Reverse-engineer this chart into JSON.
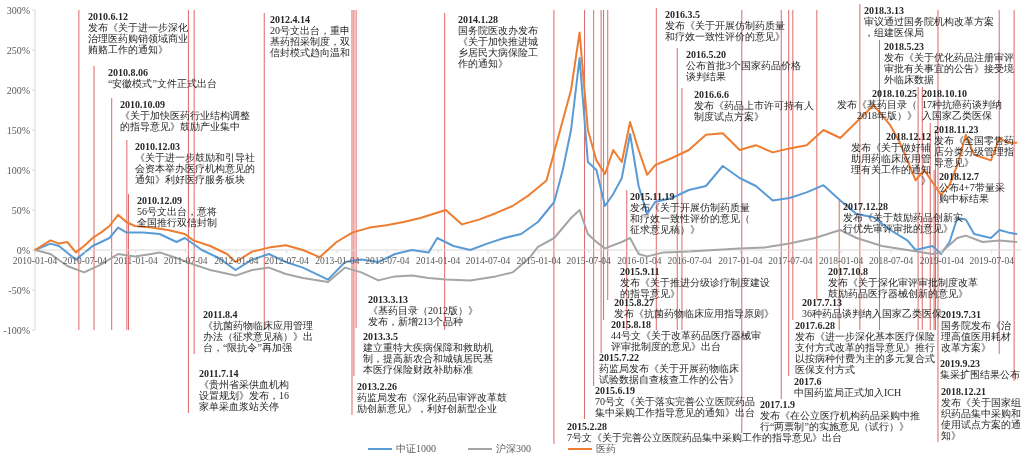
{
  "chart_data": {
    "type": "line",
    "legend": "bottom",
    "line_style": "solid",
    "marker": "none",
    "xlim": [
      "2010-01-04",
      "2019-10-18"
    ],
    "xticks": [
      "2010-01-04",
      "2010-07-04",
      "2011-01-04",
      "2011-07-04",
      "2012-01-04",
      "2012-07-04",
      "2013-01-04",
      "2013-07-04",
      "2014-01-04",
      "2014-07-04",
      "2015-01-04",
      "2015-07-04",
      "2016-01-04",
      "2016-07-04",
      "2017-01-04",
      "2017-07-04",
      "2018-01-04",
      "2018-07-04",
      "2019-01-04",
      "2019-07-04"
    ],
    "ylim": [
      -100,
      300
    ],
    "yticks": [
      {
        "value": -100,
        "label": "-100%"
      },
      {
        "value": -50,
        "label": "-50%"
      },
      {
        "value": 0,
        "label": "0%"
      },
      {
        "value": 50,
        "label": "50%"
      },
      {
        "value": 100,
        "label": "100%"
      },
      {
        "value": 150,
        "label": "150%"
      },
      {
        "value": 200,
        "label": "200%"
      },
      {
        "value": 250,
        "label": "250%"
      },
      {
        "value": 300,
        "label": "300%"
      }
    ],
    "series": [
      {
        "name": "中证1000",
        "color": "#5b9bd5",
        "x": [
          "2010-01-04",
          "2010-03",
          "2010-04",
          "2010-06",
          "2010-08",
          "2010-10",
          "2010-11",
          "2010-12",
          "2011-02",
          "2011-04",
          "2011-06",
          "2011-07",
          "2011-09",
          "2011-11",
          "2012-01",
          "2012-03",
          "2012-05",
          "2012-07",
          "2012-09",
          "2012-12",
          "2013-02",
          "2013-04",
          "2013-06",
          "2013-08",
          "2013-10",
          "2013-12",
          "2014-01",
          "2014-03",
          "2014-05",
          "2014-07",
          "2014-09",
          "2014-11",
          "2015-01",
          "2015-03",
          "2015-04",
          "2015-05",
          "2015-06",
          "2015-07",
          "2015-08",
          "2015-09",
          "2015-10",
          "2015-11",
          "2015-12",
          "2016-01",
          "2016-02",
          "2016-03",
          "2016-05",
          "2016-07",
          "2016-09",
          "2016-11",
          "2017-01",
          "2017-03",
          "2017-05",
          "2017-07",
          "2017-09",
          "2017-11",
          "2018-01",
          "2018-03",
          "2018-05",
          "2018-07",
          "2018-09",
          "2018-10",
          "2018-12",
          "2019-01",
          "2019-02",
          "2019-03",
          "2019-04",
          "2019-05",
          "2019-07",
          "2019-08",
          "2019-09",
          "2019-10"
        ],
        "values": [
          0,
          8,
          5,
          -12,
          5,
          15,
          28,
          22,
          22,
          20,
          10,
          15,
          0,
          -10,
          -25,
          -12,
          -5,
          -15,
          -22,
          -37,
          -15,
          -12,
          -15,
          -5,
          0,
          -3,
          15,
          5,
          0,
          8,
          15,
          20,
          35,
          60,
          100,
          150,
          240,
          110,
          100,
          55,
          70,
          90,
          145,
          80,
          45,
          60,
          65,
          75,
          80,
          105,
          90,
          80,
          62,
          65,
          72,
          81,
          62,
          45,
          41,
          25,
          12,
          0,
          5,
          -5,
          10,
          40,
          38,
          20,
          15,
          25,
          22,
          20
        ]
      },
      {
        "name": "沪深300",
        "color": "#a5a5a5",
        "x": [
          "2010-01-04",
          "2010-03",
          "2010-05",
          "2010-07",
          "2010-09",
          "2010-11",
          "2011-01",
          "2011-03",
          "2011-04",
          "2011-06",
          "2011-08",
          "2011-10",
          "2012-01",
          "2012-03",
          "2012-05",
          "2012-07",
          "2012-09",
          "2012-12",
          "2013-02",
          "2013-04",
          "2013-06",
          "2013-08",
          "2013-10",
          "2013-12",
          "2014-02",
          "2014-05",
          "2014-08",
          "2014-10",
          "2014-12",
          "2015-01",
          "2015-03",
          "2015-05",
          "2015-06",
          "2015-07",
          "2015-08",
          "2015-09",
          "2015-11",
          "2015-12",
          "2016-01",
          "2016-02",
          "2016-04",
          "2016-07",
          "2016-10",
          "2017-01",
          "2017-04",
          "2017-07",
          "2017-10",
          "2018-01",
          "2018-03",
          "2018-06",
          "2018-09",
          "2018-12",
          "2019-01",
          "2019-03",
          "2019-04",
          "2019-06",
          "2019-08",
          "2019-10"
        ],
        "values": [
          0,
          -5,
          -20,
          -28,
          -18,
          -5,
          -8,
          -5,
          -3,
          -10,
          -18,
          -25,
          -32,
          -25,
          -22,
          -30,
          -35,
          -40,
          -22,
          -28,
          -38,
          -33,
          -32,
          -35,
          -37,
          -38,
          -33,
          -28,
          -10,
          4,
          15,
          40,
          50,
          20,
          10,
          2,
          10,
          15,
          -5,
          -8,
          -3,
          -2,
          0,
          2,
          3,
          8,
          15,
          25,
          15,
          5,
          0,
          -5,
          -3,
          15,
          18,
          10,
          12,
          10
        ]
      },
      {
        "name": "医药",
        "color": "#ed7d31",
        "x": [
          "2010-01-04",
          "2010-03",
          "2010-04",
          "2010-05",
          "2010-06",
          "2010-07",
          "2010-08",
          "2010-09",
          "2010-10",
          "2010-11",
          "2010-12",
          "2011-01",
          "2011-03",
          "2011-05",
          "2011-07",
          "2011-08",
          "2011-10",
          "2011-12",
          "2012-01",
          "2012-03",
          "2012-05",
          "2012-07",
          "2012-09",
          "2012-11",
          "2013-01",
          "2013-03",
          "2013-05",
          "2013-07",
          "2013-09",
          "2013-11",
          "2014-02",
          "2014-04",
          "2014-06",
          "2014-08",
          "2014-10",
          "2014-12",
          "2015-02",
          "2015-04",
          "2015-05",
          "2015-06",
          "2015-07",
          "2015-08",
          "2015-09",
          "2015-10",
          "2015-11",
          "2015-12",
          "2016-01",
          "2016-02",
          "2016-03",
          "2016-05",
          "2016-07",
          "2016-09",
          "2016-11",
          "2017-01",
          "2017-03",
          "2017-05",
          "2017-07",
          "2017-09",
          "2017-11",
          "2018-01",
          "2018-03",
          "2018-05",
          "2018-07",
          "2018-08",
          "2018-09",
          "2018-10",
          "2018-11",
          "2019-01",
          "2019-02",
          "2019-03",
          "2019-04",
          "2019-05",
          "2019-07",
          "2019-08",
          "2019-09",
          "2019-10"
        ],
        "values": [
          0,
          12,
          8,
          10,
          -3,
          5,
          15,
          22,
          30,
          44,
          35,
          30,
          28,
          25,
          20,
          12,
          5,
          -5,
          -15,
          -2,
          3,
          6,
          0,
          -9,
          10,
          22,
          28,
          31,
          35,
          40,
          50,
          32,
          38,
          46,
          55,
          69,
          87,
          162,
          200,
          272,
          150,
          112,
          95,
          125,
          110,
          160,
          125,
          94,
          106,
          115,
          125,
          144,
          146,
          125,
          131,
          122,
          127,
          131,
          150,
          140,
          160,
          181,
          156,
          137,
          112,
          87,
          100,
          69,
          81,
          106,
          144,
          119,
          112,
          140,
          134,
          134
        ]
      }
    ],
    "ref_lines": [
      {
        "axis": "x",
        "value": "2010-06-12",
        "color": "#e06666",
        "label": "2010.6.12 发布《关于进一步深化治理医药购销领域商业贿赂工作的通知》"
      },
      {
        "axis": "x",
        "value": "2010-08-06",
        "color": "#e06666",
        "label": "2010.8.06 “安徽模式”文件正式出台"
      },
      {
        "axis": "x",
        "value": "2010-10-09",
        "color": "#e06666",
        "label": "2010.10.09 《关于加快医药行业结构调整的指导意见》鼓励产业集中"
      },
      {
        "axis": "x",
        "value": "2010-12-03",
        "color": "#e06666",
        "label": "2010.12.03 《关于进一步鼓励和引导社会资本举办医疗机构意见的通知》利好医疗服务板块"
      },
      {
        "axis": "x",
        "value": "2010-12-09",
        "color": "#e06666",
        "label": "2010.12.09 56号文出台，意将全国推行双信封制"
      },
      {
        "axis": "x",
        "value": "2012-04-14",
        "color": "#e06666",
        "label": "2012.4.14 20号文出台，重申基药招采制度，双信封模式趋向温和"
      },
      {
        "axis": "x",
        "value": "2014-01-28",
        "color": "#e06666",
        "label": "2014.1.28 国务院医改办发布《关于加快推进城乡居民大病保险工作的通知》"
      },
      {
        "axis": "x",
        "value": "2016-03-05",
        "color": "#e06666",
        "label": "2016.3.5 发布《关于开展仿制药质量和疗效一致性评价的意见》"
      },
      {
        "axis": "x",
        "value": "2016-05-20",
        "color": "#e06666",
        "label": "2016.5.20 公布首批3个国家药品价格谈判结果"
      },
      {
        "axis": "x",
        "value": "2016-06-06",
        "color": "#e06666",
        "label": "2016.6.6 发布《药品上市许可持有人制度试点方案》"
      },
      {
        "axis": "x",
        "value": "2015-11-19",
        "color": "#e06666",
        "label": "2015.11.19 发布《关于开展仿制药质量和疗效一致性评价的意见（征求意见稿）》"
      },
      {
        "axis": "x",
        "value": "2018-03-13",
        "color": "#e06666",
        "label": "2018.3.13 审议通过国务院机构改革方案，组建医保局"
      },
      {
        "axis": "x",
        "value": "2018-05-23",
        "color": "#e06666",
        "label": "2018.5.23 发布《关于优化药品注册审评审批有关事宜的公告》接受境外临床数据"
      },
      {
        "axis": "x",
        "value": "2018-10-10",
        "color": "#e06666",
        "label": "2018.10.10 17种抗癌药谈判纳入国家乙类医保"
      },
      {
        "axis": "x",
        "value": "2018-10-25",
        "color": "#e06666",
        "label": "2018.10.25 发布《基药目录（2018年版）》"
      },
      {
        "axis": "x",
        "value": "2018-11-23",
        "color": "#e06666",
        "label": "2018.11.23 发布《全国零售药店分类分级管理指导意见》"
      },
      {
        "axis": "x",
        "value": "2018-12-07",
        "color": "#e06666",
        "label": "2018.12.7 公布4+7带量采购中标结果"
      },
      {
        "axis": "x",
        "value": "2018-12-12",
        "color": "#e06666",
        "label": "2018.12.12 发布《关于做好辅助用药临床应用管理有关工作的通知》"
      },
      {
        "axis": "x",
        "value": "2018-12-21",
        "color": "#e06666",
        "label": "2018.12.21 发布《关于国家组织药品集中采购和使用试点方案的通知》"
      },
      {
        "axis": "x",
        "value": "2017-12-28",
        "color": "#e06666",
        "label": "2017.12.28 发布《关于鼓励药品创新实行优先审评审批的意见》"
      },
      {
        "axis": "x",
        "value": "2011-08-04",
        "color": "#e06666",
        "label": "2011.8.4 《抗菌药物临床应用管理办法（征求意见稿）》出台，“限抗令”再加强"
      },
      {
        "axis": "x",
        "value": "2011-07-14",
        "color": "#e06666",
        "label": "2011.7.14 《贵州省采供血机构设置规划》发布，16家单采血浆站关停"
      },
      {
        "axis": "x",
        "value": "2013-03-13",
        "color": "#e06666",
        "label": "2013.3.13 《基药目录（2012版）》发布，新增213个品种"
      },
      {
        "axis": "x",
        "value": "2013-03-05",
        "color": "#e06666",
        "label": "2013.3.5 建立重特大疾病保障和救助机制，提高新农合和城镇居民基本医疗保险财政补助标准"
      },
      {
        "axis": "x",
        "value": "2013-02-26",
        "color": "#e06666",
        "label": "2013.2.26 药监局发布《深化药品审评改革鼓励创新意见》，利好创新型企业"
      },
      {
        "axis": "x",
        "value": "2015-09-11",
        "color": "#e06666",
        "label": "2015.9.11 发布《关于推进分级诊疗制度建设的指导意见》"
      },
      {
        "axis": "x",
        "value": "2015-08-27",
        "color": "#e06666",
        "label": "2015.8.27 发布《抗菌药物临床应用指导原则》"
      },
      {
        "axis": "x",
        "value": "2015-08-18",
        "color": "#e06666",
        "label": "2015.8.18 44号文《关于改革药品医疗器械审评审批制度的意见》出台"
      },
      {
        "axis": "x",
        "value": "2015-07-22",
        "color": "#e06666",
        "label": "2015.7.22 药监局发布《关于开展药物临床试验数据自查核查工作的公告》"
      },
      {
        "axis": "x",
        "value": "2015-06-19",
        "color": "#e06666",
        "label": "2015.6.19 70号文《关于落实完善公立医院药品集中采购工作指导意见的通知》出台"
      },
      {
        "axis": "x",
        "value": "2015-02-28",
        "color": "#e06666",
        "label": "2015.2.28 7号文《关于完善公立医院药品集中采购工作的指导意见》出台"
      },
      {
        "axis": "x",
        "value": "2017-01-09",
        "color": "#e06666",
        "label": "2017.1.9 发布《在公立医疗机构药品采购中推行“两票制”的实施意见（试行）》"
      },
      {
        "axis": "x",
        "value": "2017-06",
        "color": "#e06666",
        "label": "2017.6 中国药监局正式加入ICH"
      },
      {
        "axis": "x",
        "value": "2017-06-28",
        "color": "#e06666",
        "label": "2017.6.28 发布《进一步深化基本医疗保险支付方式改革的指导意见》推行以按病种付费为主的多元复合式医保支付方式"
      },
      {
        "axis": "x",
        "value": "2017-07-13",
        "color": "#e06666",
        "label": "2017.7.13 36种药品谈判纳入国家乙类医保"
      },
      {
        "axis": "x",
        "value": "2017-10-08",
        "color": "#e06666",
        "label": "2017.10.8 发布《关于深化审评审批制度改革鼓励药品医疗器械创新的意见》"
      },
      {
        "axis": "x",
        "value": "2019-07-31",
        "color": "#e06666",
        "label": "2019.7.31 国务院发布《治理高值医用耗材改革方案》"
      },
      {
        "axis": "x",
        "value": "2019-09-23",
        "color": "#e06666",
        "label": "2019.9.23 集采扩围结果公布"
      }
    ]
  }
}
